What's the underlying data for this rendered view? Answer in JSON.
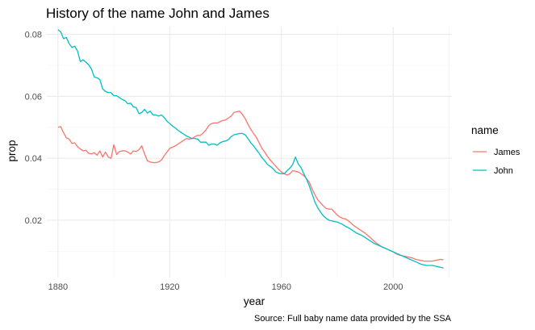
{
  "chart_data": {
    "type": "line",
    "title": "History of the name John and James",
    "xlabel": "year",
    "ylabel": "prop",
    "caption": "Source: Full baby name data provided by the SSA",
    "xlim": [
      1876,
      2021
    ],
    "ylim": [
      0.0015,
      0.0825
    ],
    "x_ticks": [
      1880,
      1920,
      1960,
      2000
    ],
    "x_tick_labels": [
      "1880",
      "1920",
      "1960",
      "2000"
    ],
    "y_ticks": [
      0.02,
      0.04,
      0.06,
      0.08
    ],
    "y_tick_labels": [
      "0.02",
      "0.04",
      "0.06",
      "0.08"
    ],
    "grid": true,
    "legend": {
      "title": "name",
      "position": "right",
      "entries": [
        "James",
        "John"
      ]
    },
    "series": [
      {
        "name": "James",
        "color": "#F8766D",
        "points": [
          [
            1880,
            0.05
          ],
          [
            1881,
            0.0502
          ],
          [
            1882,
            0.0482
          ],
          [
            1883,
            0.0466
          ],
          [
            1884,
            0.0462
          ],
          [
            1885,
            0.0448
          ],
          [
            1886,
            0.045
          ],
          [
            1887,
            0.0438
          ],
          [
            1888,
            0.043
          ],
          [
            1889,
            0.0424
          ],
          [
            1890,
            0.0426
          ],
          [
            1891,
            0.0416
          ],
          [
            1892,
            0.0414
          ],
          [
            1893,
            0.0418
          ],
          [
            1894,
            0.041
          ],
          [
            1895,
            0.0424
          ],
          [
            1896,
            0.0404
          ],
          [
            1897,
            0.042
          ],
          [
            1898,
            0.0404
          ],
          [
            1899,
            0.04
          ],
          [
            1900,
            0.0444
          ],
          [
            1901,
            0.0412
          ],
          [
            1902,
            0.0422
          ],
          [
            1903,
            0.0424
          ],
          [
            1904,
            0.0424
          ],
          [
            1905,
            0.042
          ],
          [
            1906,
            0.0414
          ],
          [
            1907,
            0.0424
          ],
          [
            1908,
            0.0422
          ],
          [
            1909,
            0.0428
          ],
          [
            1910,
            0.044
          ],
          [
            1911,
            0.0414
          ],
          [
            1912,
            0.0392
          ],
          [
            1913,
            0.0388
          ],
          [
            1914,
            0.0386
          ],
          [
            1915,
            0.0386
          ],
          [
            1916,
            0.0388
          ],
          [
            1917,
            0.0394
          ],
          [
            1918,
            0.0408
          ],
          [
            1919,
            0.042
          ],
          [
            1920,
            0.0432
          ],
          [
            1921,
            0.0436
          ],
          [
            1922,
            0.044
          ],
          [
            1923,
            0.0446
          ],
          [
            1924,
            0.0452
          ],
          [
            1925,
            0.0458
          ],
          [
            1926,
            0.0464
          ],
          [
            1927,
            0.0462
          ],
          [
            1928,
            0.0464
          ],
          [
            1929,
            0.047
          ],
          [
            1930,
            0.0474
          ],
          [
            1931,
            0.0474
          ],
          [
            1932,
            0.0482
          ],
          [
            1933,
            0.0492
          ],
          [
            1934,
            0.0506
          ],
          [
            1935,
            0.0512
          ],
          [
            1936,
            0.0514
          ],
          [
            1937,
            0.0514
          ],
          [
            1938,
            0.0518
          ],
          [
            1939,
            0.0522
          ],
          [
            1940,
            0.0524
          ],
          [
            1941,
            0.053
          ],
          [
            1942,
            0.0536
          ],
          [
            1943,
            0.0548
          ],
          [
            1944,
            0.055
          ],
          [
            1945,
            0.0552
          ],
          [
            1946,
            0.0542
          ],
          [
            1947,
            0.0528
          ],
          [
            1948,
            0.051
          ],
          [
            1949,
            0.0494
          ],
          [
            1950,
            0.048
          ],
          [
            1951,
            0.0468
          ],
          [
            1952,
            0.045
          ],
          [
            1953,
            0.0432
          ],
          [
            1954,
            0.042
          ],
          [
            1955,
            0.0406
          ],
          [
            1956,
            0.0394
          ],
          [
            1957,
            0.0384
          ],
          [
            1958,
            0.0374
          ],
          [
            1959,
            0.0364
          ],
          [
            1960,
            0.0356
          ],
          [
            1961,
            0.035
          ],
          [
            1962,
            0.0346
          ],
          [
            1963,
            0.035
          ],
          [
            1964,
            0.036
          ],
          [
            1965,
            0.0358
          ],
          [
            1966,
            0.0356
          ],
          [
            1967,
            0.035
          ],
          [
            1968,
            0.0344
          ],
          [
            1969,
            0.0334
          ],
          [
            1970,
            0.0322
          ],
          [
            1971,
            0.03
          ],
          [
            1972,
            0.0282
          ],
          [
            1973,
            0.0266
          ],
          [
            1974,
            0.0256
          ],
          [
            1975,
            0.0246
          ],
          [
            1976,
            0.0238
          ],
          [
            1977,
            0.0236
          ],
          [
            1978,
            0.0236
          ],
          [
            1979,
            0.0226
          ],
          [
            1980,
            0.0216
          ],
          [
            1981,
            0.021
          ],
          [
            1982,
            0.0206
          ],
          [
            1983,
            0.0204
          ],
          [
            1984,
            0.0198
          ],
          [
            1985,
            0.019
          ],
          [
            1986,
            0.0182
          ],
          [
            1987,
            0.0176
          ],
          [
            1988,
            0.017
          ],
          [
            1989,
            0.0164
          ],
          [
            1990,
            0.0158
          ],
          [
            1991,
            0.015
          ],
          [
            1992,
            0.0142
          ],
          [
            1993,
            0.0134
          ],
          [
            1994,
            0.0126
          ],
          [
            1995,
            0.012
          ],
          [
            1996,
            0.0114
          ],
          [
            1997,
            0.011
          ],
          [
            1998,
            0.0106
          ],
          [
            1999,
            0.0102
          ],
          [
            2000,
            0.0098
          ],
          [
            2001,
            0.0092
          ],
          [
            2002,
            0.0088
          ],
          [
            2003,
            0.0086
          ],
          [
            2004,
            0.0084
          ],
          [
            2005,
            0.0082
          ],
          [
            2006,
            0.008
          ],
          [
            2007,
            0.0078
          ],
          [
            2008,
            0.0074
          ],
          [
            2009,
            0.0072
          ],
          [
            2010,
            0.007
          ],
          [
            2011,
            0.0068
          ],
          [
            2012,
            0.0068
          ],
          [
            2013,
            0.0068
          ],
          [
            2014,
            0.0068
          ],
          [
            2015,
            0.007
          ],
          [
            2016,
            0.0072
          ],
          [
            2017,
            0.0074
          ],
          [
            2018,
            0.0072
          ]
        ]
      },
      {
        "name": "John",
        "color": "#00BFC4",
        "points": [
          [
            1880,
            0.0815
          ],
          [
            1881,
            0.0808
          ],
          [
            1882,
            0.0786
          ],
          [
            1883,
            0.079
          ],
          [
            1884,
            0.077
          ],
          [
            1885,
            0.0758
          ],
          [
            1886,
            0.0762
          ],
          [
            1887,
            0.0746
          ],
          [
            1888,
            0.0712
          ],
          [
            1889,
            0.0718
          ],
          [
            1890,
            0.071
          ],
          [
            1891,
            0.0702
          ],
          [
            1892,
            0.0688
          ],
          [
            1893,
            0.0662
          ],
          [
            1894,
            0.066
          ],
          [
            1895,
            0.0654
          ],
          [
            1896,
            0.0624
          ],
          [
            1897,
            0.0616
          ],
          [
            1898,
            0.0612
          ],
          [
            1899,
            0.0612
          ],
          [
            1900,
            0.0602
          ],
          [
            1901,
            0.0602
          ],
          [
            1902,
            0.0596
          ],
          [
            1903,
            0.059
          ],
          [
            1904,
            0.0586
          ],
          [
            1905,
            0.0576
          ],
          [
            1906,
            0.0578
          ],
          [
            1907,
            0.0566
          ],
          [
            1908,
            0.0564
          ],
          [
            1909,
            0.0544
          ],
          [
            1910,
            0.0548
          ],
          [
            1911,
            0.0558
          ],
          [
            1912,
            0.0546
          ],
          [
            1913,
            0.0552
          ],
          [
            1914,
            0.054
          ],
          [
            1915,
            0.054
          ],
          [
            1916,
            0.0536
          ],
          [
            1917,
            0.054
          ],
          [
            1918,
            0.0532
          ],
          [
            1919,
            0.052
          ],
          [
            1920,
            0.0512
          ],
          [
            1921,
            0.0504
          ],
          [
            1922,
            0.0498
          ],
          [
            1923,
            0.049
          ],
          [
            1924,
            0.0484
          ],
          [
            1925,
            0.0478
          ],
          [
            1926,
            0.0472
          ],
          [
            1927,
            0.0468
          ],
          [
            1928,
            0.0464
          ],
          [
            1929,
            0.0464
          ],
          [
            1930,
            0.0462
          ],
          [
            1931,
            0.0452
          ],
          [
            1932,
            0.0452
          ],
          [
            1933,
            0.0452
          ],
          [
            1934,
            0.0442
          ],
          [
            1935,
            0.0446
          ],
          [
            1936,
            0.0446
          ],
          [
            1937,
            0.0442
          ],
          [
            1938,
            0.045
          ],
          [
            1939,
            0.0454
          ],
          [
            1940,
            0.0456
          ],
          [
            1941,
            0.046
          ],
          [
            1942,
            0.047
          ],
          [
            1943,
            0.0476
          ],
          [
            1944,
            0.0478
          ],
          [
            1945,
            0.048
          ],
          [
            1946,
            0.048
          ],
          [
            1947,
            0.0476
          ],
          [
            1948,
            0.0464
          ],
          [
            1949,
            0.045
          ],
          [
            1950,
            0.044
          ],
          [
            1951,
            0.0428
          ],
          [
            1952,
            0.0416
          ],
          [
            1953,
            0.0402
          ],
          [
            1954,
            0.0392
          ],
          [
            1955,
            0.038
          ],
          [
            1956,
            0.0374
          ],
          [
            1957,
            0.0366
          ],
          [
            1958,
            0.0356
          ],
          [
            1959,
            0.0352
          ],
          [
            1960,
            0.035
          ],
          [
            1961,
            0.035
          ],
          [
            1962,
            0.036
          ],
          [
            1963,
            0.0368
          ],
          [
            1964,
            0.038
          ],
          [
            1965,
            0.0404
          ],
          [
            1966,
            0.0382
          ],
          [
            1967,
            0.037
          ],
          [
            1968,
            0.035
          ],
          [
            1969,
            0.0332
          ],
          [
            1970,
            0.031
          ],
          [
            1971,
            0.0284
          ],
          [
            1972,
            0.0258
          ],
          [
            1973,
            0.024
          ],
          [
            1974,
            0.0226
          ],
          [
            1975,
            0.0214
          ],
          [
            1976,
            0.0206
          ],
          [
            1977,
            0.02
          ],
          [
            1978,
            0.0198
          ],
          [
            1979,
            0.0196
          ],
          [
            1980,
            0.0194
          ],
          [
            1981,
            0.019
          ],
          [
            1982,
            0.0186
          ],
          [
            1983,
            0.018
          ],
          [
            1984,
            0.0176
          ],
          [
            1985,
            0.017
          ],
          [
            1986,
            0.0164
          ],
          [
            1987,
            0.0158
          ],
          [
            1988,
            0.0154
          ],
          [
            1989,
            0.015
          ],
          [
            1990,
            0.0144
          ],
          [
            1991,
            0.0138
          ],
          [
            1992,
            0.0132
          ],
          [
            1993,
            0.0126
          ],
          [
            1994,
            0.0122
          ],
          [
            1995,
            0.0118
          ],
          [
            1996,
            0.0114
          ],
          [
            1997,
            0.011
          ],
          [
            1998,
            0.0106
          ],
          [
            1999,
            0.0102
          ],
          [
            2000,
            0.0098
          ],
          [
            2001,
            0.0094
          ],
          [
            2002,
            0.009
          ],
          [
            2003,
            0.0086
          ],
          [
            2004,
            0.0082
          ],
          [
            2005,
            0.0078
          ],
          [
            2006,
            0.0074
          ],
          [
            2007,
            0.007
          ],
          [
            2008,
            0.0066
          ],
          [
            2009,
            0.0062
          ],
          [
            2010,
            0.0058
          ],
          [
            2011,
            0.0056
          ],
          [
            2012,
            0.0054
          ],
          [
            2013,
            0.0054
          ],
          [
            2014,
            0.0054
          ],
          [
            2015,
            0.0052
          ],
          [
            2016,
            0.005
          ],
          [
            2017,
            0.0048
          ],
          [
            2018,
            0.0046
          ]
        ]
      }
    ]
  }
}
